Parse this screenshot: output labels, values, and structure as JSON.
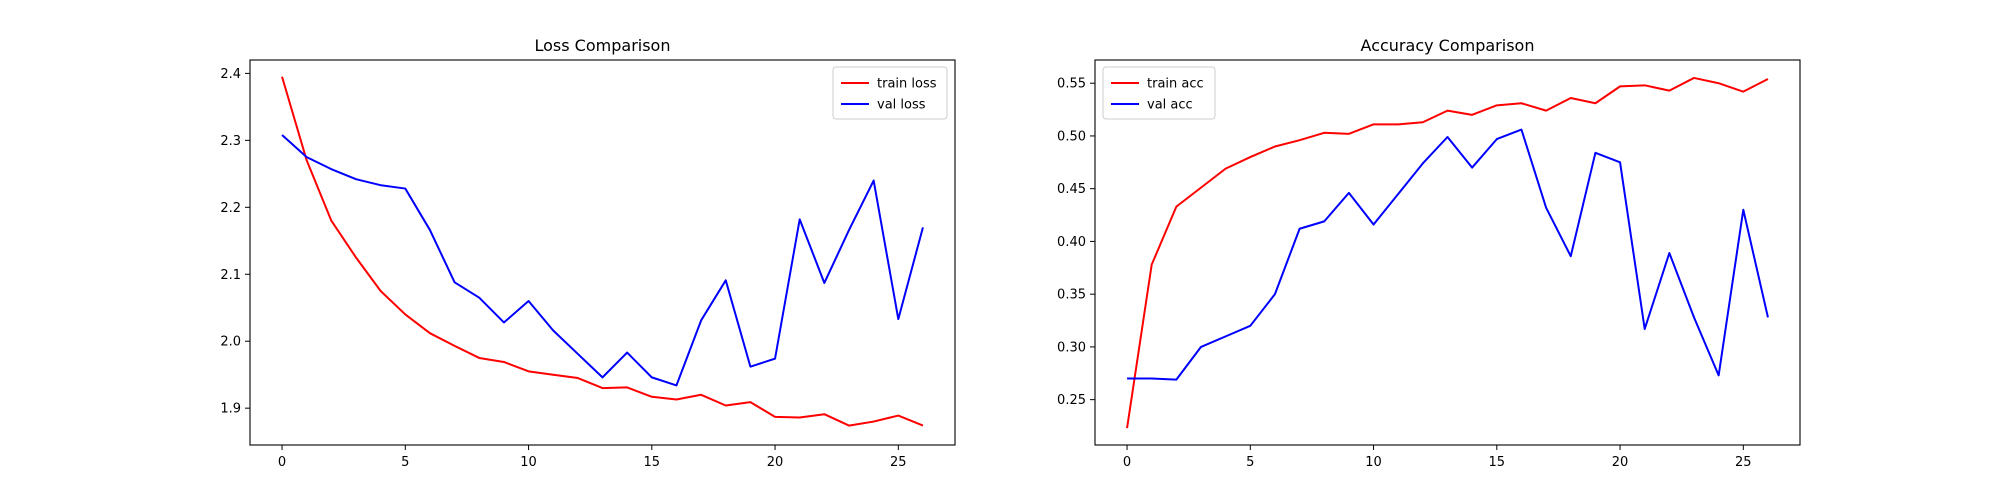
{
  "chart_data": [
    {
      "type": "line",
      "title": "Loss Comparison",
      "xlabel": "",
      "ylabel": "",
      "xlim": [
        -1.3,
        27.3
      ],
      "ylim": [
        1.845,
        2.42
      ],
      "xticks": [
        0,
        5,
        10,
        15,
        20,
        25
      ],
      "yticks": [
        1.9,
        2.0,
        2.1,
        2.2,
        2.3,
        2.4
      ],
      "ytick_decimals": 1,
      "grid": false,
      "legend_position": "top-right",
      "x": [
        0,
        1,
        2,
        3,
        4,
        5,
        6,
        7,
        8,
        9,
        10,
        11,
        12,
        13,
        14,
        15,
        16,
        17,
        18,
        19,
        20,
        21,
        22,
        23,
        24,
        25,
        26
      ],
      "series": [
        {
          "name": "train loss",
          "color": "#ff0000",
          "values": [
            2.395,
            2.27,
            2.18,
            2.125,
            2.075,
            2.04,
            2.012,
            1.993,
            1.975,
            1.969,
            1.955,
            1.95,
            1.945,
            1.93,
            1.931,
            1.917,
            1.913,
            1.92,
            1.904,
            1.909,
            1.887,
            1.886,
            1.891,
            1.874,
            1.88,
            1.889,
            1.874
          ]
        },
        {
          "name": "val loss",
          "color": "#0000ff",
          "values": [
            2.308,
            2.275,
            2.257,
            2.242,
            2.233,
            2.228,
            2.166,
            2.088,
            2.065,
            2.028,
            2.06,
            2.016,
            1.981,
            1.946,
            1.983,
            1.946,
            1.934,
            2.031,
            2.091,
            1.962,
            1.974,
            2.182,
            2.087,
            2.166,
            2.24,
            2.033,
            2.17
          ]
        }
      ]
    },
    {
      "type": "line",
      "title": "Accuracy Comparison",
      "xlabel": "",
      "ylabel": "",
      "xlim": [
        -1.3,
        27.3
      ],
      "ylim": [
        0.207,
        0.572
      ],
      "xticks": [
        0,
        5,
        10,
        15,
        20,
        25
      ],
      "yticks": [
        0.25,
        0.3,
        0.35,
        0.4,
        0.45,
        0.5,
        0.55
      ],
      "ytick_decimals": 2,
      "grid": false,
      "legend_position": "top-left",
      "x": [
        0,
        1,
        2,
        3,
        4,
        5,
        6,
        7,
        8,
        9,
        10,
        11,
        12,
        13,
        14,
        15,
        16,
        17,
        18,
        19,
        20,
        21,
        22,
        23,
        24,
        25,
        26
      ],
      "series": [
        {
          "name": "train acc",
          "color": "#ff0000",
          "values": [
            0.223,
            0.378,
            0.433,
            0.451,
            0.469,
            0.48,
            0.49,
            0.496,
            0.503,
            0.502,
            0.511,
            0.511,
            0.513,
            0.524,
            0.52,
            0.529,
            0.531,
            0.524,
            0.536,
            0.531,
            0.547,
            0.548,
            0.543,
            0.555,
            0.55,
            0.542,
            0.554
          ]
        },
        {
          "name": "val acc",
          "color": "#0000ff",
          "values": [
            0.27,
            0.27,
            0.269,
            0.3,
            0.31,
            0.32,
            0.35,
            0.412,
            0.419,
            0.446,
            0.416,
            0.445,
            0.474,
            0.499,
            0.47,
            0.497,
            0.506,
            0.432,
            0.386,
            0.484,
            0.475,
            0.317,
            0.389,
            0.328,
            0.273,
            0.43,
            0.328
          ]
        }
      ]
    }
  ]
}
